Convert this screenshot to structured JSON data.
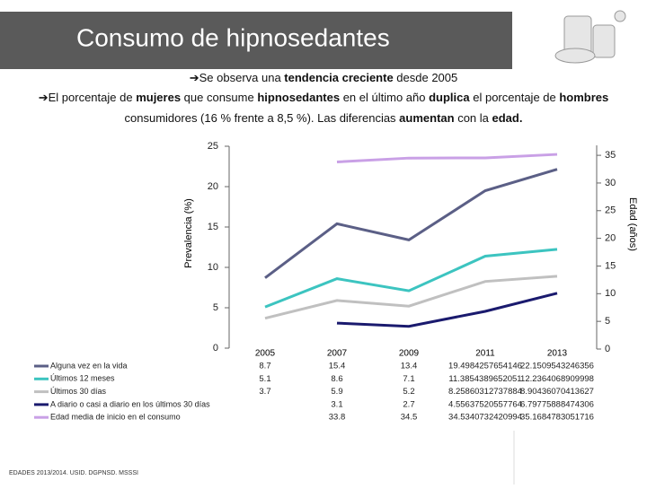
{
  "header": {
    "title": "Consumo de hipnosedantes"
  },
  "bullets": [
    {
      "runs": [
        {
          "text": "➔Se observa una ",
          "bold": false
        },
        {
          "text": "tendencia creciente",
          "bold": true
        },
        {
          "text": " desde 2005",
          "bold": false
        }
      ]
    },
    {
      "runs": [
        {
          "text": "➔El porcentaje de ",
          "bold": false
        },
        {
          "text": "mujeres",
          "bold": true
        },
        {
          "text": " que consume ",
          "bold": false
        },
        {
          "text": "hipnosedantes",
          "bold": true
        },
        {
          "text": " en el último año ",
          "bold": false
        },
        {
          "text": "duplica",
          "bold": true
        },
        {
          "text": " el porcentaje de ",
          "bold": false
        },
        {
          "text": "hombres",
          "bold": true
        }
      ]
    },
    {
      "runs": [
        {
          "text": "consumidores (16 % frente a 8,5 %). Las diferencias ",
          "bold": false
        },
        {
          "text": "aumentan",
          "bold": true
        },
        {
          "text": " con la ",
          "bold": false
        },
        {
          "text": "edad.",
          "bold": true
        }
      ]
    }
  ],
  "chart_data": {
    "type": "line",
    "categories": [
      "2005",
      "2007",
      "2009",
      "2011",
      "2013"
    ],
    "ylabel": "Prevalencia (%)",
    "y2label": "Edad (años)",
    "ylim": [
      0,
      25
    ],
    "yticks": [
      0,
      5,
      10,
      15,
      20,
      25
    ],
    "y2lim": [
      0,
      36.8
    ],
    "y2ticks": [
      0,
      5,
      10,
      15,
      20,
      25,
      30,
      35
    ],
    "series": [
      {
        "name": "Alguna vez en la vida",
        "color": "#5b5f86",
        "values": [
          8.7,
          15.4,
          13.4,
          19.4984257654146,
          22.1509543246356
        ]
      },
      {
        "name": "Últimos 12 meses",
        "color": "#3cc4c0",
        "values": [
          5.1,
          8.6,
          7.1,
          11.3854389652051,
          12.2364068909998
        ]
      },
      {
        "name": "Últimos 30 días",
        "color": "#c0c0c0",
        "values": [
          3.7,
          5.9,
          5.2,
          8.25860312737884,
          8.90436070413627
        ]
      },
      {
        "name": "A diario o casi a diario en los últimos 30 días",
        "color": "#1a1a6e",
        "values": [
          null,
          3.1,
          2.7,
          4.55637520557764,
          6.79775888474306
        ]
      },
      {
        "name": "Edad media de inicio en el consumo",
        "color": "#c9a0e6",
        "axis": "y2",
        "values": [
          null,
          33.8,
          34.5,
          34.5340732420994,
          35.1684783051716
        ]
      }
    ]
  },
  "footer": {
    "source": "EDADES 2013/2014. USID. DGPNSD. MSSSI"
  }
}
